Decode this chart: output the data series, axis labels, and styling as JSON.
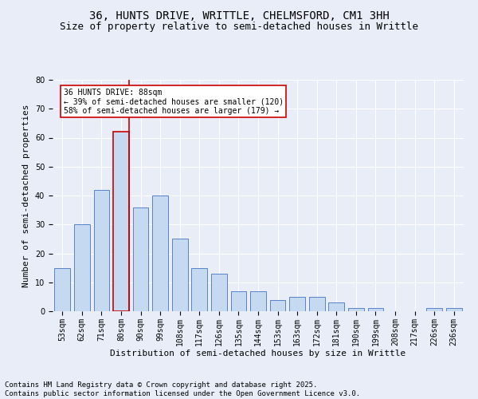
{
  "title_line1": "36, HUNTS DRIVE, WRITTLE, CHELMSFORD, CM1 3HH",
  "title_line2": "Size of property relative to semi-detached houses in Writtle",
  "xlabel": "Distribution of semi-detached houses by size in Writtle",
  "ylabel": "Number of semi-detached properties",
  "categories": [
    "53sqm",
    "62sqm",
    "71sqm",
    "80sqm",
    "90sqm",
    "99sqm",
    "108sqm",
    "117sqm",
    "126sqm",
    "135sqm",
    "144sqm",
    "153sqm",
    "163sqm",
    "172sqm",
    "181sqm",
    "190sqm",
    "199sqm",
    "208sqm",
    "217sqm",
    "226sqm",
    "236sqm"
  ],
  "values": [
    15,
    30,
    42,
    62,
    36,
    40,
    25,
    15,
    13,
    7,
    7,
    4,
    5,
    5,
    3,
    1,
    1,
    0,
    0,
    1,
    1
  ],
  "bar_color": "#c5d9f0",
  "bar_edge_color": "#4472c4",
  "highlight_bar_index": 3,
  "highlight_edge_color": "#cc0000",
  "vline_color": "#cc0000",
  "vline_x": 3.4,
  "annotation_title": "36 HUNTS DRIVE: 88sqm",
  "annotation_line2": "← 39% of semi-detached houses are smaller (120)",
  "annotation_line3": "58% of semi-detached houses are larger (179) →",
  "annotation_box_color": "#ffffff",
  "annotation_box_edge": "#cc0000",
  "ylim": [
    0,
    80
  ],
  "yticks": [
    0,
    10,
    20,
    30,
    40,
    50,
    60,
    70,
    80
  ],
  "footnote_line1": "Contains HM Land Registry data © Crown copyright and database right 2025.",
  "footnote_line2": "Contains public sector information licensed under the Open Government Licence v3.0.",
  "background_color": "#e8edf8",
  "grid_color": "#ffffff",
  "title_fontsize": 10,
  "subtitle_fontsize": 9,
  "axis_label_fontsize": 8,
  "tick_fontsize": 7,
  "annotation_fontsize": 7,
  "footnote_fontsize": 6.5
}
